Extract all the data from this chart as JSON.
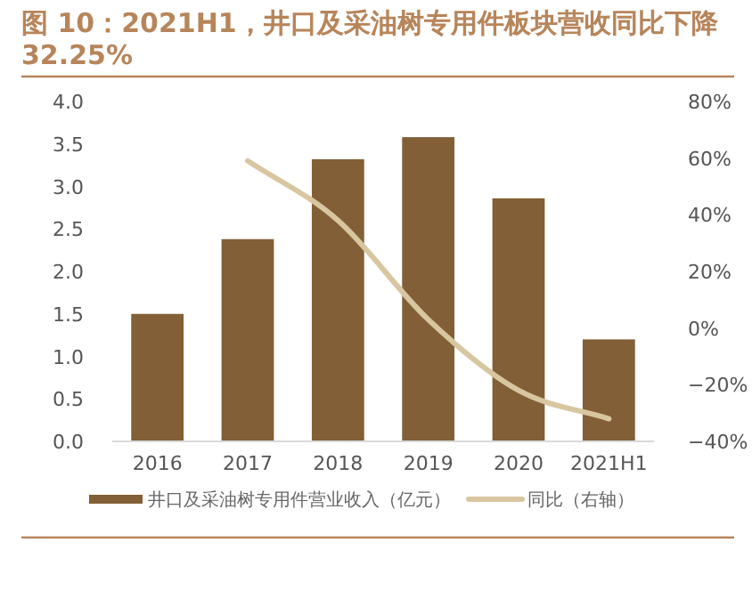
{
  "chart_data": {
    "type": "bar",
    "title": "图 10：2021H1，井口及采油树专用件板块营收同比下降32.25%",
    "categories": [
      "2016",
      "2017",
      "2018",
      "2019",
      "2020",
      "2021H1"
    ],
    "series": [
      {
        "name": "井口及采油树专用件营业收入（亿元）",
        "color": "#825f36",
        "values": [
          1.5,
          2.38,
          3.32,
          3.58,
          2.86,
          1.2
        ]
      },
      {
        "name": "同比（右轴）",
        "type": "line",
        "axis": "y2",
        "color": "#d8c6a0",
        "values": [
          null,
          59,
          38,
          3,
          -22,
          -32
        ]
      }
    ],
    "ylim": [
      0,
      4
    ],
    "yticks": [
      {
        "value": 0,
        "label": "0.0"
      },
      {
        "value": 0.5,
        "label": "0.5"
      },
      {
        "value": 1,
        "label": "1.0"
      },
      {
        "value": 1.5,
        "label": "1.5"
      },
      {
        "value": 2,
        "label": "2.0"
      },
      {
        "value": 2.5,
        "label": "2.5"
      },
      {
        "value": 3,
        "label": "3.0"
      },
      {
        "value": 3.5,
        "label": "3.5"
      },
      {
        "value": 4,
        "label": "4.0"
      }
    ],
    "y2lim": [
      -40,
      80
    ],
    "y2ticks": [
      {
        "value": -40,
        "label": "−40%"
      },
      {
        "value": -20,
        "label": "−20%"
      },
      {
        "value": 0,
        "label": "0%"
      },
      {
        "value": 20,
        "label": "20%"
      },
      {
        "value": 40,
        "label": "40%"
      },
      {
        "value": 60,
        "label": "60%"
      },
      {
        "value": 80,
        "label": "80%"
      }
    ],
    "legend": "bottom",
    "grid": false
  }
}
